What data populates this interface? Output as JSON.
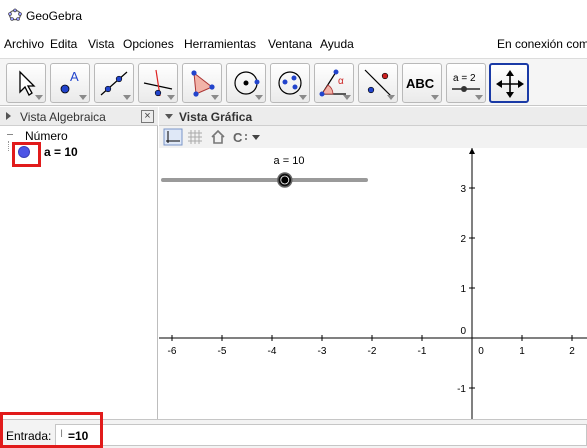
{
  "window": {
    "title": "GeoGebra"
  },
  "menu": {
    "items": [
      "Archivo",
      "Edita",
      "Vista",
      "Opciones",
      "Herramientas",
      "Ventana",
      "Ayuda"
    ],
    "status": "En conexión com"
  },
  "toolbar": {
    "tools": [
      {
        "icon": "move-arrow-icon"
      },
      {
        "icon": "point-icon",
        "glyph": "A"
      },
      {
        "icon": "line-icon"
      },
      {
        "icon": "perpendicular-line-icon"
      },
      {
        "icon": "polygon-icon"
      },
      {
        "icon": "circle-center-point-icon"
      },
      {
        "icon": "circle-three-points-icon"
      },
      {
        "icon": "angle-icon",
        "glyph": "α"
      },
      {
        "icon": "reflect-icon"
      },
      {
        "icon": "text-icon",
        "glyph": "ABC"
      },
      {
        "icon": "slider-icon",
        "glyph": "a = 2"
      },
      {
        "icon": "move-graphics-view-icon"
      }
    ],
    "selected_index": 11
  },
  "algebra_view": {
    "title": "Vista Algebraica",
    "category": "Número",
    "objects": [
      {
        "label": "a = 10",
        "color": "#4d55e6"
      }
    ]
  },
  "graphics_view": {
    "title": "Vista Gráfica",
    "slider": {
      "label": "a = 10",
      "value": 10,
      "min": -5,
      "max": 5
    },
    "x_ticks": [
      "-6",
      "-5",
      "-4",
      "-3",
      "-2",
      "-1",
      "0",
      "1",
      "2"
    ],
    "y_ticks": [
      "3",
      "2",
      "1",
      "0",
      "-1"
    ]
  },
  "input_bar": {
    "label": "Entrada:",
    "cursor": "I",
    "value": "=10"
  },
  "colors": {
    "highlight": "#e11b1b",
    "selected_tool": "#1a3aa6",
    "point": "#4d55e6"
  }
}
